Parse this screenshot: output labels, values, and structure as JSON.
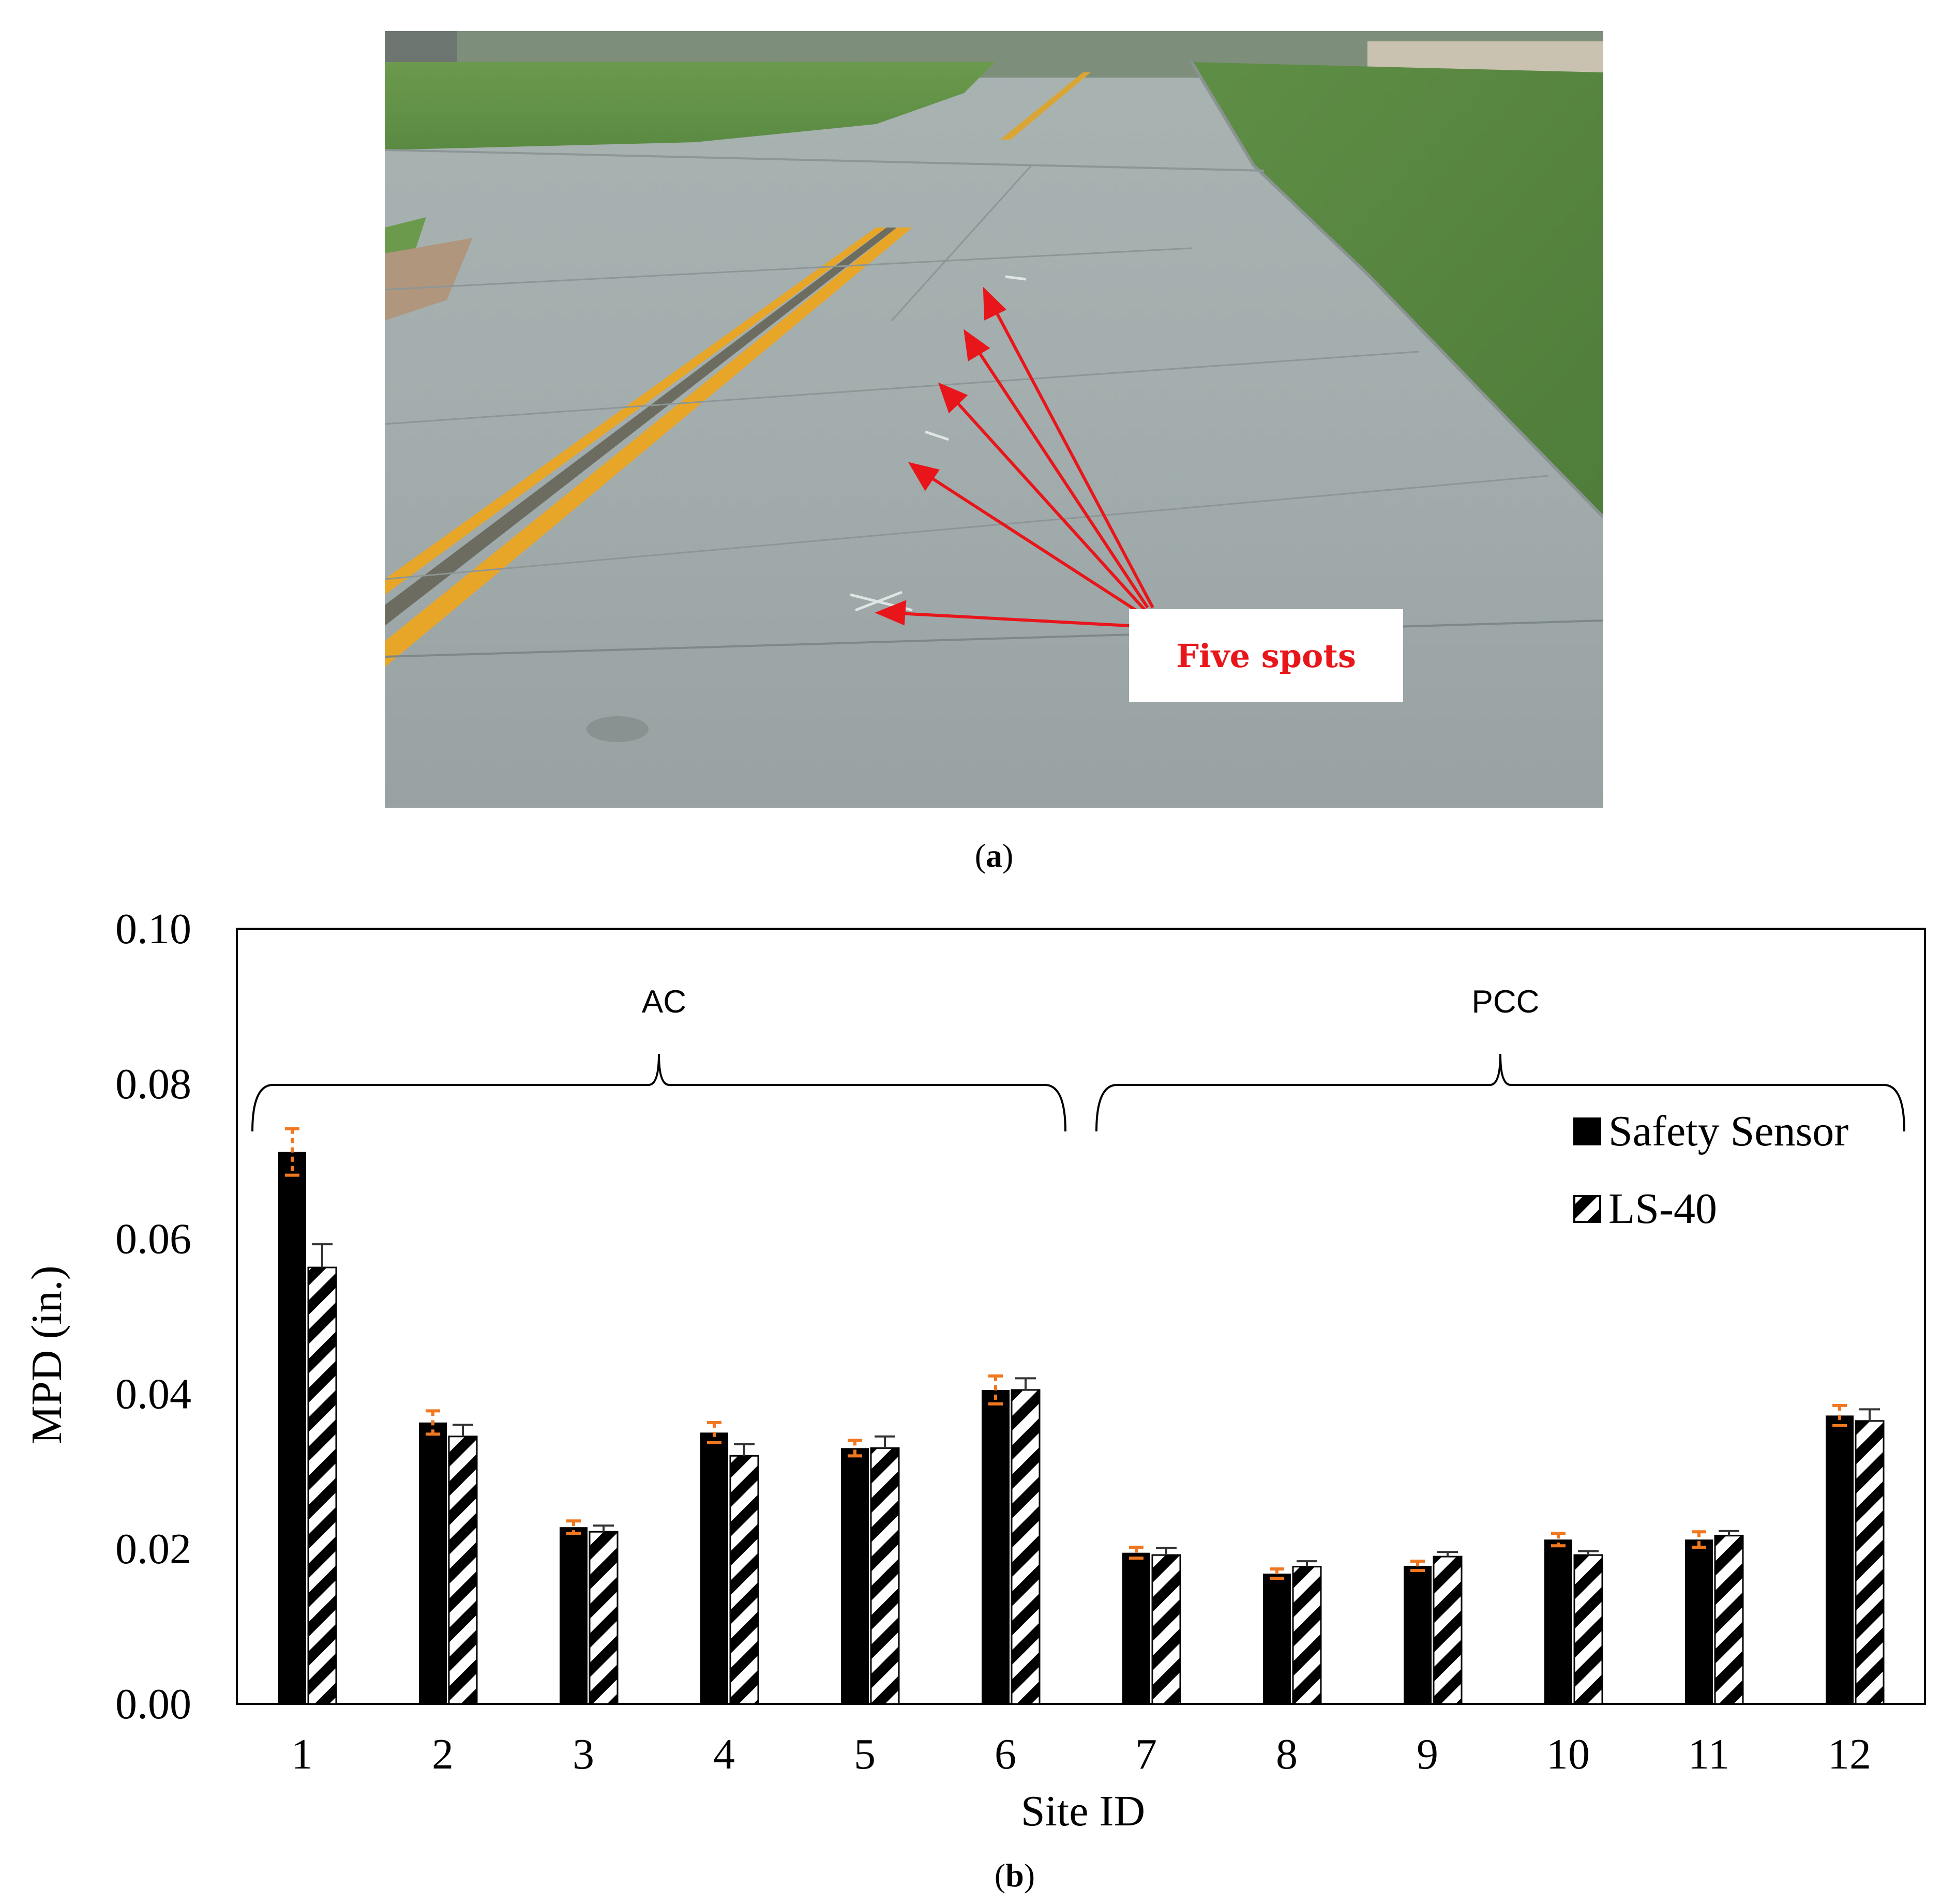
{
  "photo": {
    "callout_label": "Five spots"
  },
  "captions": {
    "a": "a",
    "b": "b"
  },
  "colors": {
    "series1": "#000000",
    "series2_hatch": "#000000",
    "error_bar_series1": "#f07820",
    "error_bar_series2": "#333333",
    "callout": "#e8161b",
    "road_line": "#e8a628"
  },
  "chart_data": {
    "type": "bar",
    "xlabel": "Site ID",
    "ylabel": "MPD (in.)",
    "ylim": [
      0,
      0.1
    ],
    "yticks": [
      "0.00",
      "0.02",
      "0.04",
      "0.06",
      "0.08",
      "0.10"
    ],
    "categories": [
      "1",
      "2",
      "3",
      "4",
      "5",
      "6",
      "7",
      "8",
      "9",
      "10",
      "11",
      "12"
    ],
    "series": [
      {
        "name": "Safety Sensor",
        "values": [
          0.0712,
          0.0363,
          0.0228,
          0.035,
          0.033,
          0.0405,
          0.0195,
          0.0168,
          0.0178,
          0.0212,
          0.0212,
          0.0372
        ],
        "errors": [
          0.003,
          0.0015,
          0.0008,
          0.0013,
          0.001,
          0.0018,
          0.0007,
          0.0006,
          0.0006,
          0.0008,
          0.001,
          0.0013
        ]
      },
      {
        "name": "LS-40",
        "values": [
          0.0563,
          0.0345,
          0.0222,
          0.032,
          0.033,
          0.0405,
          0.0192,
          0.0177,
          0.019,
          0.0192,
          0.0217,
          0.0365
        ],
        "errors": [
          0.003,
          0.0015,
          0.0008,
          0.0015,
          0.0015,
          0.0015,
          0.0009,
          0.0007,
          0.0006,
          0.0005,
          0.0006,
          0.0015
        ]
      }
    ],
    "groups": [
      {
        "label": "AC",
        "from": "1",
        "to": "6"
      },
      {
        "label": "PCC",
        "from": "7",
        "to": "12"
      }
    ],
    "legend_position": "top-right",
    "grid": false
  }
}
